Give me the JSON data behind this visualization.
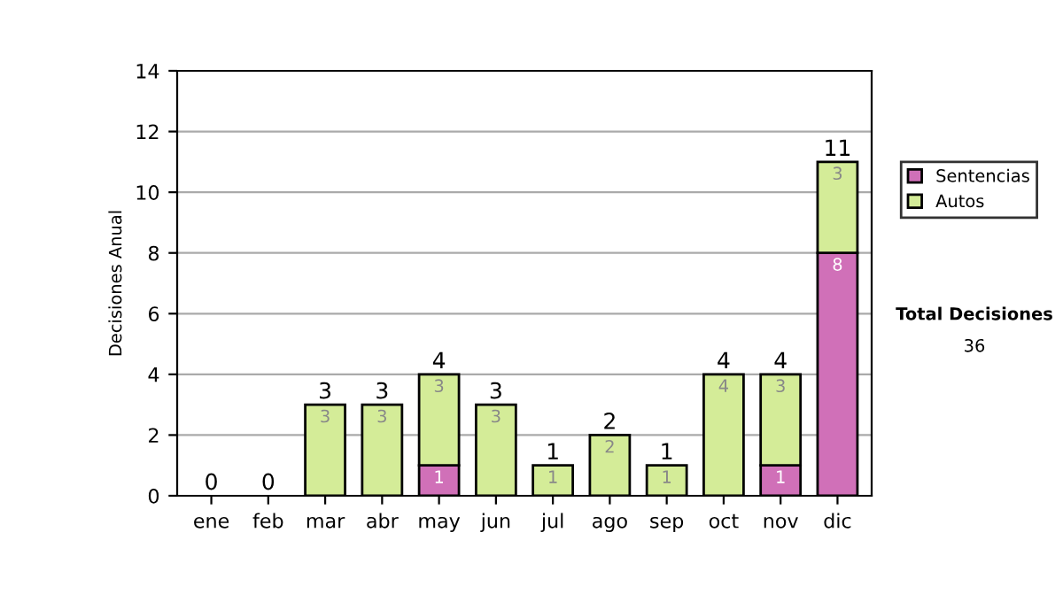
{
  "chart_data": {
    "type": "bar",
    "stacked": true,
    "ylabel": "Decisiones Anual",
    "categories": [
      "ene",
      "feb",
      "mar",
      "abr",
      "may",
      "jun",
      "jul",
      "ago",
      "sep",
      "oct",
      "nov",
      "dic"
    ],
    "series": [
      {
        "name": "Sentencias",
        "color": "#d070b8",
        "values": [
          0,
          0,
          0,
          0,
          1,
          0,
          0,
          0,
          0,
          0,
          1,
          8
        ],
        "value_labels": [
          null,
          null,
          null,
          null,
          "1",
          null,
          null,
          null,
          null,
          null,
          "1",
          "8"
        ]
      },
      {
        "name": "Autos",
        "color": "#d4ec98",
        "values": [
          0,
          0,
          3,
          3,
          3,
          3,
          1,
          2,
          1,
          4,
          3,
          3
        ],
        "value_labels": [
          null,
          null,
          "3",
          "3",
          "3",
          "3",
          "1",
          "2",
          "1",
          "4",
          "3",
          "3"
        ]
      }
    ],
    "totals": [
      "0",
      "0",
      "3",
      "3",
      "4",
      "3",
      "1",
      "2",
      "1",
      "4",
      "4",
      "11"
    ],
    "ylim": [
      0,
      14
    ],
    "yticks": [
      0,
      2,
      4,
      6,
      8,
      10,
      12,
      14
    ],
    "grid": "y",
    "legend": "right",
    "annotations": [
      "Total Decisiones",
      "36"
    ]
  }
}
